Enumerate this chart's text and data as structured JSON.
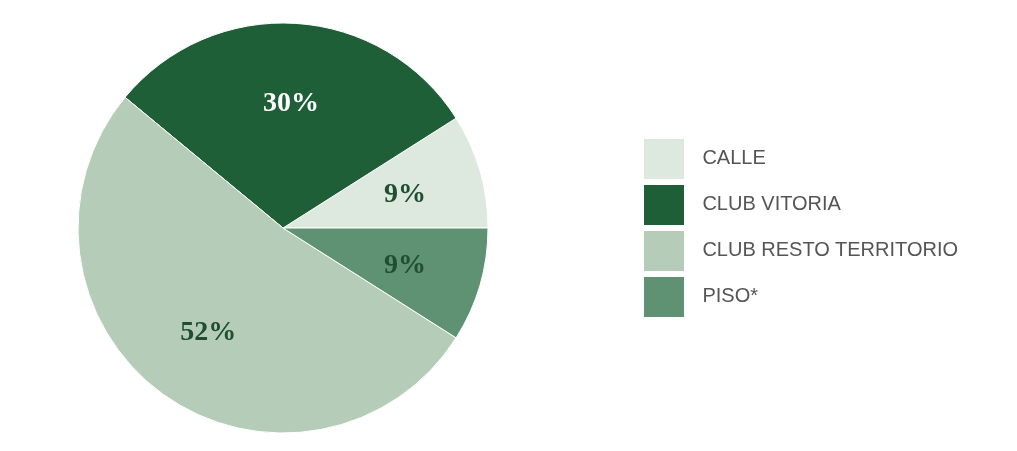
{
  "chart_data": {
    "type": "pie",
    "categories": [
      "CALLE",
      "CLUB VITORIA",
      "CLUB RESTO TERRITORIO",
      "PISO*"
    ],
    "values": [
      9,
      30,
      52,
      9
    ],
    "colors": [
      "#dde8de",
      "#1f5f38",
      "#b5ccb8",
      "#5e9272"
    ],
    "value_labels": [
      "9%",
      "30%",
      "52%",
      "9%"
    ],
    "legend": "right"
  }
}
